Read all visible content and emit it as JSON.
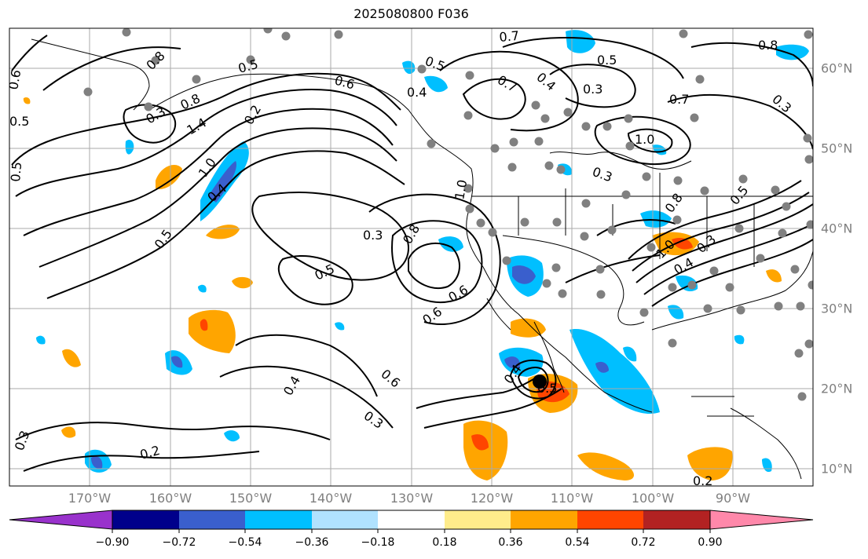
{
  "title": "2025080800 F036",
  "lon_labels": [
    "170°W",
    "160°W",
    "150°W",
    "140°W",
    "130°W",
    "120°W",
    "110°W",
    "100°W",
    "90°W"
  ],
  "lat_labels": [
    "60°N",
    "50°N",
    "40°N",
    "30°N",
    "20°N",
    "10°N"
  ],
  "colorbar": {
    "colors": [
      "#9932cc",
      "#00008b",
      "#3a5fcd",
      "#00bfff",
      "#b0e2ff",
      "#ffffff",
      "#ffec8b",
      "#ffa500",
      "#ff4500",
      "#b22222",
      "#ff88aa"
    ],
    "tick_labels": [
      "−0.90",
      "−0.72",
      "−0.54",
      "−0.36",
      "−0.18",
      "0.18",
      "0.36",
      "0.54",
      "0.72",
      "0.90"
    ]
  },
  "contour_labels": [
    "0.7",
    "0.5",
    "0.8",
    "0.5",
    "0.6",
    "0.4",
    "0.7",
    "0.4",
    "0.5",
    "0.3",
    "0.8",
    "0.3",
    "0.8",
    "1.4",
    "0.2",
    "1.0",
    "0.4",
    "0.7",
    "1.0",
    "0.3",
    "0.3",
    "0.5",
    "0.8",
    "1.0",
    "0.8",
    "1.0",
    "0.3",
    "0.4",
    "0.5",
    "0.6",
    "0.6",
    "0.3",
    "0.4",
    "0.4",
    "0.5",
    "0.2",
    "0.3",
    "0.2",
    "0.5",
    "0.5",
    "0.6",
    "0.3",
    "0.6",
    "0.5"
  ],
  "station_marker_color": "#808080",
  "center_marker_color": "#000000"
}
